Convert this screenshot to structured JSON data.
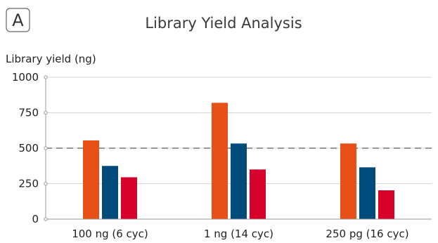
{
  "panel_label": "A",
  "chart_data": {
    "type": "bar",
    "title": "Library Yield Analysis",
    "xlabel": "",
    "ylabel": "Library yield (ng)",
    "ylim": [
      0,
      1000
    ],
    "yticks": [
      0,
      250,
      500,
      750,
      1000
    ],
    "reference_line": 500,
    "grid": true,
    "categories": [
      "100 ng (6 cyc)",
      "1 ng (14 cyc)",
      "250 pg (16 cyc)"
    ],
    "series": [
      {
        "values": [
          555,
          820,
          533
        ],
        "color": "#E8501A"
      },
      {
        "values": [
          375,
          533,
          365
        ],
        "color": "#004A7C"
      },
      {
        "values": [
          295,
          350,
          203
        ],
        "color": "#D7002A"
      }
    ]
  }
}
